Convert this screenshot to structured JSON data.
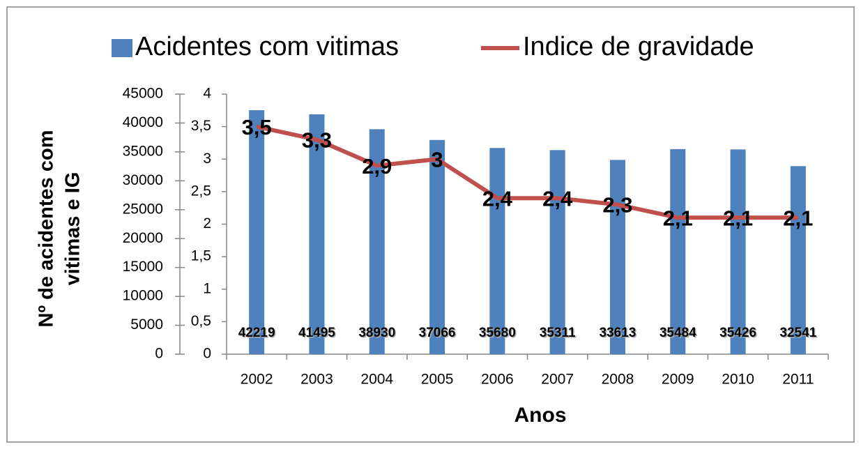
{
  "chart_data": {
    "type": "bar-line",
    "categories": [
      "2002",
      "2003",
      "2004",
      "2005",
      "2006",
      "2007",
      "2008",
      "2009",
      "2010",
      "2011"
    ],
    "series": [
      {
        "name": "Acidentes com vitimas",
        "type": "bar",
        "color": "#4f81bd",
        "axis": "y",
        "values": [
          42219,
          41495,
          38930,
          37066,
          35680,
          35311,
          33613,
          35484,
          35426,
          32541
        ]
      },
      {
        "name": "Indice de gravidade",
        "type": "line",
        "color": "#c0504d",
        "axis": "y2",
        "values": [
          3.5,
          3.3,
          2.9,
          3,
          2.4,
          2.4,
          2.3,
          2.1,
          2.1,
          2.1
        ],
        "value_labels": [
          "3,5",
          "3,3",
          "2,9",
          "3",
          "2,4",
          "2,4",
          "2,3",
          "2,1",
          "2,1",
          "2,1"
        ]
      }
    ],
    "ylim": [
      0,
      45000
    ],
    "yticks": [
      0,
      5000,
      10000,
      15000,
      20000,
      25000,
      30000,
      35000,
      40000,
      45000
    ],
    "y2lim": [
      0,
      4
    ],
    "y2ticks": [
      0,
      {
        "value": 0.5,
        "label": "0,5"
      },
      1,
      {
        "value": 1.5,
        "label": "1,5"
      },
      2,
      {
        "value": 2.5,
        "label": "2,5"
      },
      3,
      {
        "value": 3.5,
        "label": "3,5"
      },
      4
    ],
    "ylabel": [
      "Nº de acidentes com",
      "vitimas e IG"
    ],
    "xlabel": "Anos",
    "legend": "top"
  }
}
